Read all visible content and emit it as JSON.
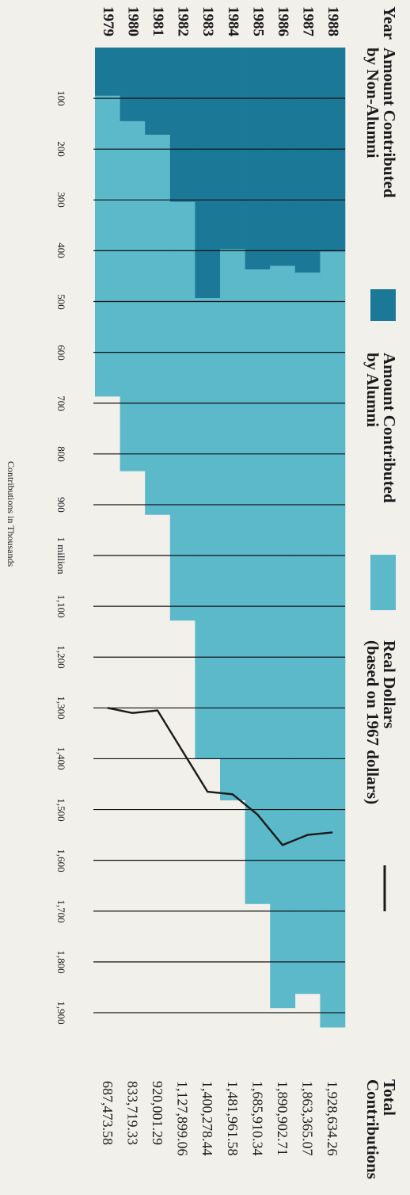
{
  "chart_data": {
    "type": "bar",
    "stacked": true,
    "x_header": "Year",
    "y_label": "Contributions in Thousands",
    "categories": [
      "1979",
      "1980",
      "1981",
      "1982",
      "1983",
      "1984",
      "1985",
      "1986",
      "1987",
      "1988"
    ],
    "series": [
      {
        "name": "Amount Contributed by Non-Alumni",
        "color": "#1b7896",
        "values": [
          95,
          145,
          172,
          304,
          493,
          397,
          437,
          430,
          443,
          402
        ]
      },
      {
        "name": "Amount Contributed by Alumni",
        "color": "#5bb9c9",
        "values": [
          592,
          689,
          748,
          824,
          907,
          1085,
          1249,
          1461,
          1420,
          1527
        ]
      },
      {
        "name": "Real Dollars (based on 1967 dollars)",
        "type": "line",
        "color": "#1a1a1a",
        "values": [
          1300,
          1310,
          1305,
          1385,
          1465,
          1470,
          1510,
          1570,
          1550,
          1545
        ]
      }
    ],
    "totals": {
      "name": "Total Contributions",
      "values": [
        687.47358,
        833.71933,
        920.00129,
        1127.89906,
        1400.27844,
        1481.96158,
        1685.91034,
        1890.90271,
        1863.36507,
        1928.63426
      ],
      "value_labels": [
        "687,473.58",
        "833,719.33",
        "920,001.29",
        "1,127,899.06",
        "1,400,278.44",
        "1,481,961.58",
        "1,685,910.34",
        "1,890,902.71",
        "1,863,365.07",
        "1,928,634.26"
      ]
    },
    "ylim": [
      0,
      1950
    ],
    "yticks": [
      100,
      200,
      300,
      400,
      500,
      600,
      700,
      800,
      900,
      {
        "value": 1000,
        "label": "1 million"
      },
      {
        "value": 1100,
        "label": "1,100"
      },
      {
        "value": 1200,
        "label": "1,200"
      },
      {
        "value": 1300,
        "label": "1,300"
      },
      {
        "value": 1400,
        "label": "1,400"
      },
      {
        "value": 1500,
        "label": "1,500"
      },
      {
        "value": 1600,
        "label": "1,600"
      },
      {
        "value": 1700,
        "label": "1,700"
      },
      {
        "value": 1800,
        "label": "1,800"
      },
      {
        "value": 1900,
        "label": "1,900"
      }
    ],
    "grid": true
  }
}
